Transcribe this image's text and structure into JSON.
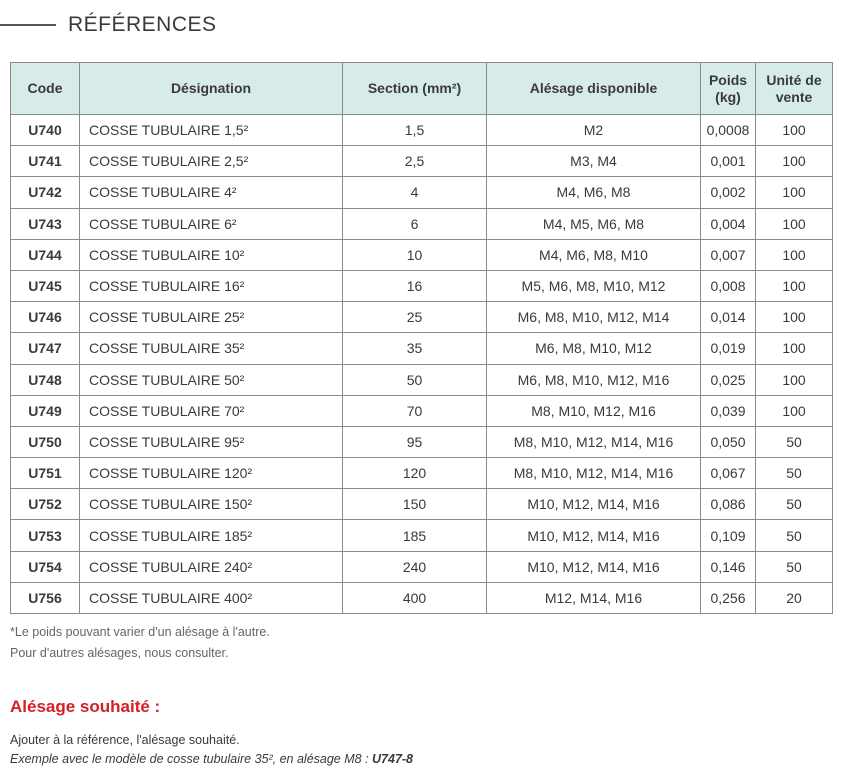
{
  "header": {
    "title": "RÉFÉRENCES"
  },
  "table": {
    "columns": [
      "Code",
      "Désignation",
      "Section (mm²)",
      "Alésage disponible",
      "Poids (kg)",
      "Unité de vente"
    ],
    "rows": [
      {
        "code": "U740",
        "designation": "COSSE TUBULAIRE 1,5²",
        "section": "1,5",
        "alesage": "M2",
        "poids": "0,0008",
        "unite": "100"
      },
      {
        "code": "U741",
        "designation": "COSSE TUBULAIRE 2,5²",
        "section": "2,5",
        "alesage": "M3, M4",
        "poids": "0,001",
        "unite": "100"
      },
      {
        "code": "U742",
        "designation": "COSSE TUBULAIRE 4²",
        "section": "4",
        "alesage": "M4, M6, M8",
        "poids": "0,002",
        "unite": "100"
      },
      {
        "code": "U743",
        "designation": "COSSE TUBULAIRE 6²",
        "section": "6",
        "alesage": "M4, M5, M6, M8",
        "poids": "0,004",
        "unite": "100"
      },
      {
        "code": "U744",
        "designation": "COSSE TUBULAIRE 10²",
        "section": "10",
        "alesage": "M4, M6, M8, M10",
        "poids": "0,007",
        "unite": "100"
      },
      {
        "code": "U745",
        "designation": "COSSE TUBULAIRE 16²",
        "section": "16",
        "alesage": "M5, M6, M8, M10, M12",
        "poids": "0,008",
        "unite": "100"
      },
      {
        "code": "U746",
        "designation": "COSSE TUBULAIRE 25²",
        "section": "25",
        "alesage": "M6, M8, M10, M12, M14",
        "poids": "0,014",
        "unite": "100"
      },
      {
        "code": "U747",
        "designation": "COSSE TUBULAIRE 35²",
        "section": "35",
        "alesage": "M6, M8, M10, M12",
        "poids": "0,019",
        "unite": "100"
      },
      {
        "code": "U748",
        "designation": "COSSE TUBULAIRE 50²",
        "section": "50",
        "alesage": "M6, M8, M10, M12, M16",
        "poids": "0,025",
        "unite": "100"
      },
      {
        "code": "U749",
        "designation": "COSSE TUBULAIRE 70²",
        "section": "70",
        "alesage": "M8, M10, M12, M16",
        "poids": "0,039",
        "unite": "100"
      },
      {
        "code": "U750",
        "designation": "COSSE TUBULAIRE 95²",
        "section": "95",
        "alesage": "M8, M10, M12, M14, M16",
        "poids": "0,050",
        "unite": "50"
      },
      {
        "code": "U751",
        "designation": "COSSE TUBULAIRE 120²",
        "section": "120",
        "alesage": "M8, M10, M12, M14, M16",
        "poids": "0,067",
        "unite": "50"
      },
      {
        "code": "U752",
        "designation": "COSSE TUBULAIRE 150²",
        "section": "150",
        "alesage": "M10, M12, M14, M16",
        "poids": "0,086",
        "unite": "50"
      },
      {
        "code": "U753",
        "designation": "COSSE TUBULAIRE 185²",
        "section": "185",
        "alesage": "M10, M12, M14, M16",
        "poids": "0,109",
        "unite": "50"
      },
      {
        "code": "U754",
        "designation": "COSSE TUBULAIRE 240²",
        "section": "240",
        "alesage": "M10, M12, M14, M16",
        "poids": "0,146",
        "unite": "50"
      },
      {
        "code": "U756",
        "designation": "COSSE TUBULAIRE 400²",
        "section": "400",
        "alesage": "M12, M14, M16",
        "poids": "0,256",
        "unite": "20"
      }
    ]
  },
  "notes": {
    "line1": "*Le poids pouvant varier d'un alésage à l'autre.",
    "line2": "Pour d'autres alésages, nous consulter."
  },
  "alesage_section": {
    "title": "Alésage souhaité :",
    "instruction": "Ajouter à la référence, l'alésage souhaité.",
    "example_text": "Exemple avec le modèle de cosse tubulaire 35², en alésage M8 : ",
    "example_ref": "U747-8"
  },
  "colors": {
    "header_bg": "#d7ebea",
    "accent_red": "#d41f26",
    "border": "#8a8a8a"
  }
}
